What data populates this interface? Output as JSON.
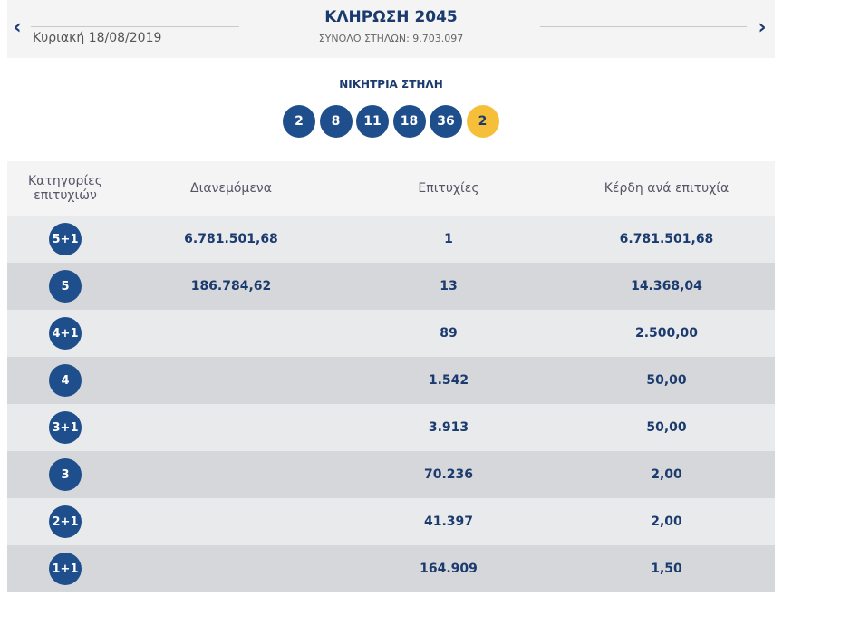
{
  "header": {
    "prev_icon": "chevron-left-icon",
    "next_icon": "chevron-right-icon",
    "date": "Κυριακή 18/08/2019",
    "title": "ΚΛΗΡΩΣΗ 2045",
    "subtitle": "ΣΥΝΟΛΟ ΣΤΗΛΩΝ: 9.703.097"
  },
  "winning": {
    "label": "ΝΙΚΗΤΡΙΑ ΣΤΗΛΗ",
    "numbers": [
      "2",
      "8",
      "11",
      "18",
      "36"
    ],
    "bonus": "2"
  },
  "table": {
    "headers": [
      "Κατηγορίες επιτυχιών",
      "Διανεμόμενα",
      "Επιτυχίες",
      "Κέρδη ανά επιτυχία"
    ],
    "rows": [
      {
        "category": "5+1",
        "distributed": "6.781.501,68",
        "winners": "1",
        "prize": "6.781.501,68"
      },
      {
        "category": "5",
        "distributed": "186.784,62",
        "winners": "13",
        "prize": "14.368,04"
      },
      {
        "category": "4+1",
        "distributed": "",
        "winners": "89",
        "prize": "2.500,00"
      },
      {
        "category": "4",
        "distributed": "",
        "winners": "1.542",
        "prize": "50,00"
      },
      {
        "category": "3+1",
        "distributed": "",
        "winners": "3.913",
        "prize": "50,00"
      },
      {
        "category": "3",
        "distributed": "",
        "winners": "70.236",
        "prize": "2,00"
      },
      {
        "category": "2+1",
        "distributed": "",
        "winners": "41.397",
        "prize": "2,00"
      },
      {
        "category": "1+1",
        "distributed": "",
        "winners": "164.909",
        "prize": "1,50"
      }
    ]
  },
  "colors": {
    "ball": "#1f4e8c",
    "bonus_ball": "#f6bf3a",
    "text_primary": "#1b3b6f"
  }
}
